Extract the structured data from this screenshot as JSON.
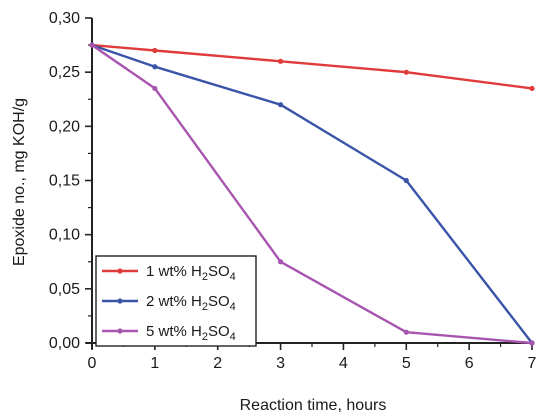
{
  "chart_data": {
    "type": "line",
    "xlabel": "Reaction time, hours",
    "ylabel": "Epoxide no., mg KOH/g",
    "xlim": [
      0,
      7
    ],
    "ylim": [
      0,
      0.3
    ],
    "x_ticks": [
      "0",
      "1",
      "2",
      "3",
      "4",
      "5",
      "6",
      "7"
    ],
    "y_ticks": [
      "0,00",
      "0,05",
      "0,10",
      "0,15",
      "0,20",
      "0,25",
      "0,30"
    ],
    "grid": false,
    "legend_position": "bottom-left",
    "series": [
      {
        "name": "1 wt% H2SO4",
        "legend_prefix": "1 wt% H",
        "legend_sub1": "2",
        "legend_mid": "SO",
        "legend_sub2": "4",
        "color": "#e03a3a",
        "x": [
          0,
          1,
          3,
          5,
          7
        ],
        "y": [
          0.275,
          0.27,
          0.26,
          0.25,
          0.235
        ]
      },
      {
        "name": "2 wt% H2SO4",
        "legend_prefix": "2 wt% H",
        "legend_sub1": "2",
        "legend_mid": "SO",
        "legend_sub2": "4",
        "color": "#3a55a8",
        "x": [
          0,
          1,
          3,
          5,
          7
        ],
        "y": [
          0.275,
          0.255,
          0.22,
          0.15,
          0.0
        ]
      },
      {
        "name": "5 wt% H2SO4",
        "legend_prefix": "5 wt% H",
        "legend_sub1": "2",
        "legend_mid": "SO",
        "legend_sub2": "4",
        "color": "#a855b0",
        "x": [
          0,
          1,
          3,
          5,
          7
        ],
        "y": [
          0.275,
          0.235,
          0.075,
          0.01,
          0.0
        ]
      }
    ]
  }
}
